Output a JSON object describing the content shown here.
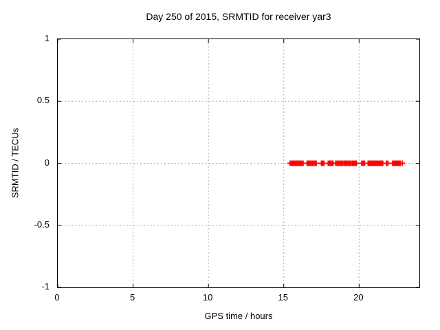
{
  "window": {
    "background": "#ffffff"
  },
  "chart_data": {
    "type": "scatter",
    "title": "Day 250 of 2015, SRMTID for receiver yar3",
    "xlabel": "GPS time / hours",
    "ylabel": "SRMTID / TECUs",
    "xlim": [
      0,
      24
    ],
    "ylim": [
      -1,
      1
    ],
    "xtick_values": [
      0,
      5,
      10,
      15,
      20
    ],
    "xtick_labels": [
      "0",
      "5",
      "10",
      "15",
      "20"
    ],
    "ytick_values": [
      1,
      0.5,
      0,
      -0.5,
      -1
    ],
    "ytick_labels": [
      "1",
      "0.5",
      "0",
      "-0.5",
      "-1"
    ],
    "grid": true,
    "grid_color": "#aaaaaa",
    "border_color": "#000000",
    "legend_position": "none",
    "series": [
      {
        "name": "SRMTID",
        "marker": "plus",
        "marker_color": "#ff0000",
        "x": [
          15.42,
          15.52,
          15.6,
          15.68,
          15.76,
          15.85,
          15.93,
          16.02,
          16.1,
          16.18,
          16.28,
          16.55,
          16.63,
          16.72,
          16.8,
          16.89,
          16.98,
          17.07,
          17.15,
          17.5,
          17.58,
          17.66,
          17.95,
          18.03,
          18.11,
          18.19,
          18.27,
          18.45,
          18.54,
          18.63,
          18.72,
          18.81,
          18.9,
          19.0,
          19.09,
          19.18,
          19.27,
          19.36,
          19.45,
          19.55,
          19.64,
          19.73,
          19.82,
          20.18,
          20.27,
          20.36,
          20.6,
          20.68,
          20.76,
          20.84,
          20.92,
          21.0,
          21.08,
          21.16,
          21.24,
          21.32,
          21.4,
          21.48,
          21.57,
          21.82,
          21.91,
          22.23,
          22.31,
          22.39,
          22.47,
          22.55,
          22.63,
          22.72,
          22.86
        ],
        "y": 0
      }
    ]
  }
}
